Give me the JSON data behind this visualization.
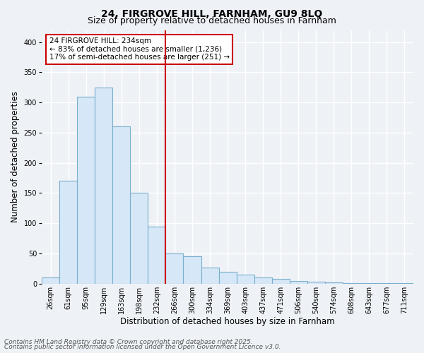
{
  "title_line1": "24, FIRGROVE HILL, FARNHAM, GU9 8LQ",
  "title_line2": "Size of property relative to detached houses in Farnham",
  "xlabel": "Distribution of detached houses by size in Farnham",
  "ylabel": "Number of detached properties",
  "categories": [
    "26sqm",
    "61sqm",
    "95sqm",
    "129sqm",
    "163sqm",
    "198sqm",
    "232sqm",
    "266sqm",
    "300sqm",
    "334sqm",
    "369sqm",
    "403sqm",
    "437sqm",
    "471sqm",
    "506sqm",
    "540sqm",
    "574sqm",
    "608sqm",
    "643sqm",
    "677sqm",
    "711sqm"
  ],
  "values": [
    10,
    170,
    310,
    325,
    260,
    150,
    95,
    50,
    45,
    27,
    20,
    15,
    10,
    8,
    4,
    3,
    2,
    1,
    1,
    1,
    1
  ],
  "bar_color": "#d6e8f7",
  "bar_edgecolor": "#7aaecc",
  "vline_color": "#cc0000",
  "vline_x": 6.5,
  "annotation_box": {
    "text_line1": "24 FIRGROVE HILL: 234sqm",
    "text_line2": "← 83% of detached houses are smaller (1,236)",
    "text_line3": "17% of semi-detached houses are larger (251) →",
    "box_color": "#ffffff",
    "border_color": "#cc0000"
  },
  "ylim": [
    0,
    420
  ],
  "yticks": [
    0,
    50,
    100,
    150,
    200,
    250,
    300,
    350,
    400
  ],
  "footer_line1": "Contains HM Land Registry data © Crown copyright and database right 2025.",
  "footer_line2": "Contains public sector information licensed under the Open Government Licence v3.0.",
  "background_color": "#eef2f7",
  "plot_bg_color": "#eef2f7",
  "grid_color": "#ffffff",
  "title_fontsize": 10,
  "subtitle_fontsize": 9,
  "axis_label_fontsize": 8.5,
  "tick_fontsize": 7,
  "annotation_fontsize": 7.5,
  "footer_fontsize": 6.5
}
